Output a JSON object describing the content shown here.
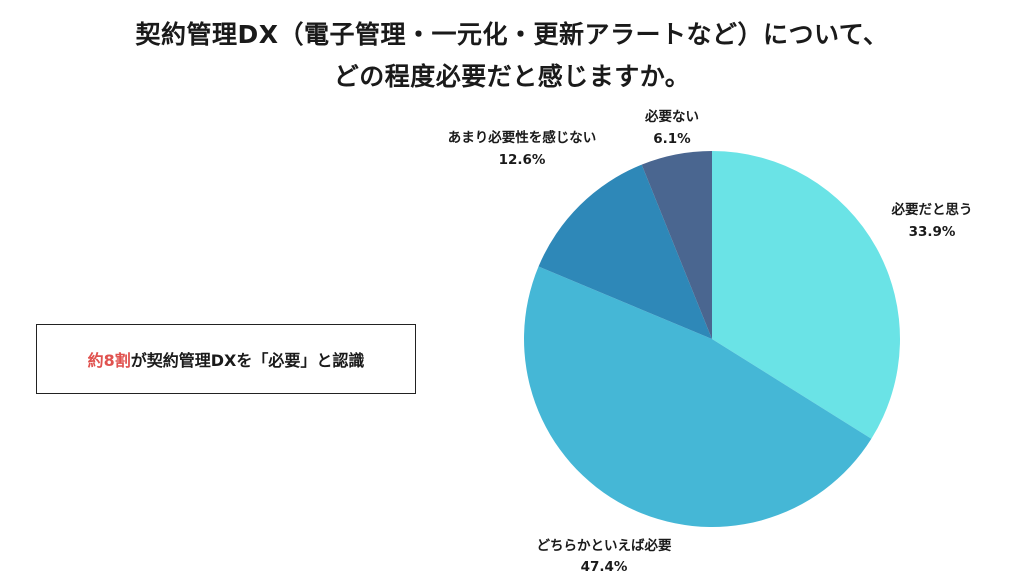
{
  "title": {
    "line1": "契約管理DX（電子管理・一元化・更新アラートなど）について、",
    "line2": "どの程度必要だと感じますか。"
  },
  "callout": {
    "highlight": "約8割",
    "text": "が契約管理DXを「必要」と認識"
  },
  "colors": {
    "highlight": "#e0524f"
  },
  "chart_data": {
    "type": "pie",
    "title": "契約管理DX（電子管理・一元化・更新アラートなど）について、どの程度必要だと感じますか。",
    "unit": "%",
    "start": "12 o'clock, clockwise",
    "slices": [
      {
        "label": "必要だと思う",
        "value": 33.9,
        "display": "33.9%",
        "color": "#6ae3e6"
      },
      {
        "label": "どちらかといえば必要",
        "value": 47.4,
        "display": "47.4%",
        "color": "#45b7d6"
      },
      {
        "label": "あまり必要性を感じない",
        "value": 12.6,
        "display": "12.6%",
        "color": "#2e88b8"
      },
      {
        "label": "必要ない",
        "value": 6.1,
        "display": "6.1%",
        "color": "#4a6690"
      }
    ]
  }
}
